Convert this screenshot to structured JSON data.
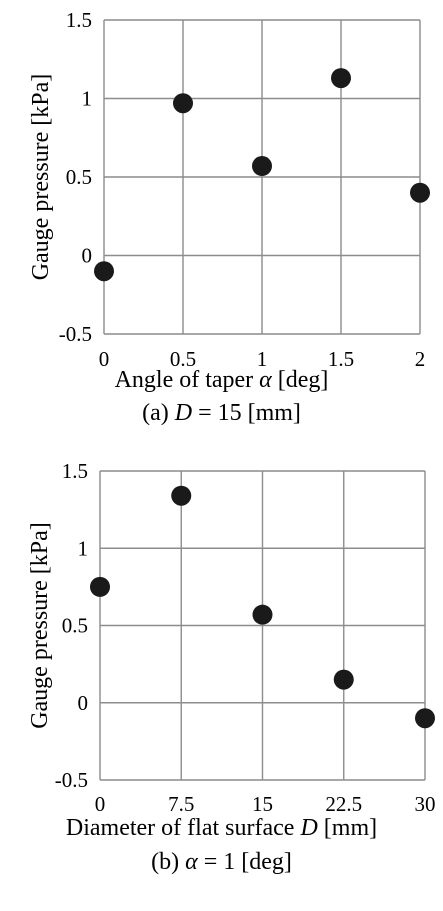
{
  "chart_data": [
    {
      "type": "scatter",
      "xlabel_prefix": "Angle of taper ",
      "xlabel_symbol": "α",
      "xlabel_suffix": " [deg]",
      "ylabel": "Gauge pressure [kPa]",
      "caption_prefix": "(a) ",
      "caption_symbol": "D",
      "caption_suffix": " = 15 [mm]",
      "x": [
        0,
        0.5,
        1,
        1.5,
        2
      ],
      "y": [
        -0.1,
        0.97,
        0.57,
        1.13,
        0.4
      ],
      "xticks": [
        0,
        0.5,
        1,
        1.5,
        2
      ],
      "xtick_labels": [
        "0",
        "0.5",
        "1",
        "1.5",
        "2"
      ],
      "yticks": [
        -0.5,
        0,
        0.5,
        1,
        1.5
      ],
      "ytick_labels": [
        "-0.5",
        "0",
        "0.5",
        "1",
        "1.5"
      ],
      "xlim": [
        0,
        2
      ],
      "ylim": [
        -0.5,
        1.5
      ],
      "grid": true,
      "marker_color": "#1a1a1a",
      "grid_color": "#8c8c8c"
    },
    {
      "type": "scatter",
      "xlabel_prefix": "Diameter of flat surface ",
      "xlabel_symbol": "D",
      "xlabel_suffix": " [mm]",
      "ylabel": "Gauge pressure [kPa]",
      "caption_prefix": "(b) ",
      "caption_symbol": "α",
      "caption_suffix": " = 1 [deg]",
      "x": [
        0,
        7.5,
        15,
        22.5,
        30
      ],
      "y": [
        0.75,
        1.34,
        0.57,
        0.15,
        -0.1
      ],
      "xticks": [
        0,
        7.5,
        15,
        22.5,
        30
      ],
      "xtick_labels": [
        "0",
        "7.5",
        "15",
        "22.5",
        "30"
      ],
      "yticks": [
        -0.5,
        0,
        0.5,
        1,
        1.5
      ],
      "ytick_labels": [
        "-0.5",
        "0",
        "0.5",
        "1",
        "1.5"
      ],
      "xlim": [
        0,
        30
      ],
      "ylim": [
        -0.5,
        1.5
      ],
      "grid": true,
      "marker_color": "#1a1a1a",
      "grid_color": "#8c8c8c"
    }
  ]
}
